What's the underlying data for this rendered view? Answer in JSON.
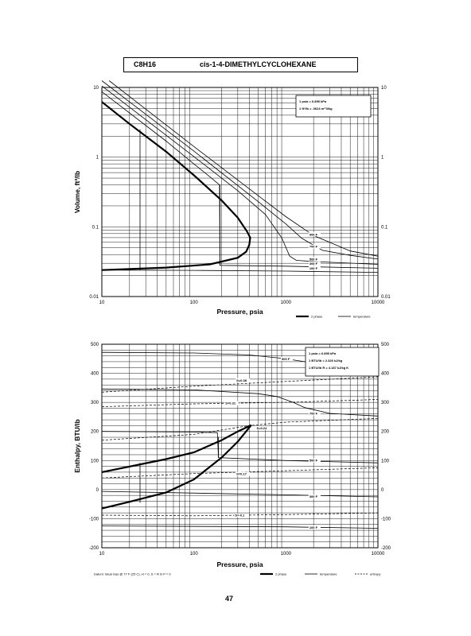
{
  "header": {
    "formula": "C8H16",
    "name": "cis-1-4-DIMETHYLCYCLOHEXANE"
  },
  "page_number": "47",
  "chart_data": [
    {
      "type": "line",
      "id": "volume",
      "xlabel": "Pressure,  psia",
      "ylabel": "Volume,  ft^3/lb",
      "x_scale": "log",
      "y_scale": "log",
      "xlim": [
        10,
        10000
      ],
      "ylim": [
        0.01,
        10
      ],
      "x_ticks": [
        "10",
        "100",
        "1000",
        "10000"
      ],
      "y_ticks": [
        "0.01",
        "0.1",
        "1",
        "10"
      ],
      "conversion_box": [
        "1 psia = 6.895 kPa",
        "1 ft^3/lb = .0624 m^3/kg"
      ],
      "legend": [
        "2 phase",
        "temperature"
      ],
      "series": [
        {
          "style": "2phase",
          "points": [
            [
              10,
              6.2
            ],
            [
              20,
              3.0
            ],
            [
              50,
              1.2
            ],
            [
              100,
              0.55
            ],
            [
              200,
              0.24
            ],
            [
              300,
              0.135
            ],
            [
              380,
              0.085
            ],
            [
              410,
              0.07
            ],
            [
              400,
              0.055
            ],
            [
              370,
              0.044
            ],
            [
              300,
              0.036
            ],
            [
              150,
              0.029
            ],
            [
              50,
              0.026
            ],
            [
              10,
              0.024
            ]
          ]
        },
        {
          "name": "100 F",
          "style": "temp",
          "points": [
            [
              10,
              0.024
            ],
            [
              100,
              0.0237
            ],
            [
              1000,
              0.0232
            ],
            [
              10000,
              0.0222
            ]
          ]
        },
        {
          "name": "300 F",
          "style": "temp",
          "points": [
            [
              10,
              8.7
            ],
            [
              50,
              1.7
            ],
            [
              100,
              0.8
            ],
            [
              150,
              0.52
            ],
            [
              190,
              0.4
            ],
            [
              192,
              0.028
            ],
            [
              1000,
              0.0273
            ],
            [
              10000,
              0.0255
            ]
          ]
        },
        {
          "name": "500 F",
          "style": "temp",
          "points": [
            [
              10,
              10.5
            ],
            [
              100,
              1.02
            ],
            [
              300,
              0.33
            ],
            [
              600,
              0.15
            ],
            [
              900,
              0.07
            ],
            [
              1100,
              0.038
            ],
            [
              1300,
              0.033
            ],
            [
              2000,
              0.0318
            ],
            [
              10000,
              0.029
            ]
          ]
        },
        {
          "name": "700 F",
          "style": "temp",
          "points": [
            [
              10,
              12.5
            ],
            [
              100,
              1.22
            ],
            [
              500,
              0.23
            ],
            [
              1000,
              0.11
            ],
            [
              1500,
              0.068
            ],
            [
              2500,
              0.046
            ],
            [
              5000,
              0.039
            ],
            [
              10000,
              0.0345
            ]
          ]
        },
        {
          "name": "900 F",
          "style": "temp",
          "points": [
            [
              12,
              12.5
            ],
            [
              100,
              1.42
            ],
            [
              500,
              0.28
            ],
            [
              1000,
              0.14
            ],
            [
              2000,
              0.075
            ],
            [
              5000,
              0.045
            ],
            [
              10000,
              0.038
            ]
          ]
        }
      ],
      "labels": [
        {
          "text": "900 F",
          "x": 1800,
          "y": 0.075
        },
        {
          "text": "700 F",
          "x": 1800,
          "y": 0.05
        },
        {
          "text": "500 F",
          "x": 1800,
          "y": 0.033
        },
        {
          "text": "300 F",
          "x": 1800,
          "y": 0.0285
        },
        {
          "text": "100 F",
          "x": 1800,
          "y": 0.0245
        }
      ],
      "vlines": [
        {
          "x": 26,
          "y1": 0.024,
          "y2": 2.5
        },
        {
          "x": 192,
          "y1": 0.028,
          "y2": 0.4
        }
      ]
    },
    {
      "type": "line",
      "id": "enthalpy",
      "xlabel": "Pressure,  psia",
      "ylabel": "Enthalpy,  BTU/lb",
      "x_scale": "log",
      "y_scale": "linear",
      "xlim": [
        10,
        10000
      ],
      "ylim": [
        -200,
        500
      ],
      "x_ticks": [
        "10",
        "100",
        "1000",
        "10000"
      ],
      "y_ticks": [
        "-200",
        "-100",
        "0",
        "100",
        "200",
        "300",
        "400",
        "500"
      ],
      "conversion_box": [
        "1 psia = 6.895 kPa",
        "1 BTU/lb = 2.326 kJ/kg",
        "1 BTU/lb R = 4.187 kJ/kg K"
      ],
      "footnote": "Datum: Ideal Gas @ 77 F (25 C), H = 0, S = R ln P = 0",
      "legend": [
        "2 phase",
        "temperature",
        "entropy"
      ],
      "series": [
        {
          "style": "2phase",
          "points": [
            [
              10,
              60
            ],
            [
              50,
              105
            ],
            [
              100,
              128
            ],
            [
              200,
              170
            ],
            [
              300,
              200
            ],
            [
              420,
              222
            ],
            [
              300,
              165
            ],
            [
              200,
              110
            ],
            [
              100,
              35
            ],
            [
              50,
              -10
            ],
            [
              20,
              -42
            ],
            [
              10,
              -65
            ]
          ]
        },
        {
          "name": "900 F",
          "style": "temp",
          "points": [
            [
              10,
              472
            ],
            [
              100,
              470
            ],
            [
              400,
              463
            ],
            [
              900,
              452
            ],
            [
              1600,
              440
            ],
            [
              3000,
              430
            ],
            [
              10000,
              422
            ]
          ]
        },
        {
          "name": "700 F",
          "style": "temp",
          "points": [
            [
              10,
              346
            ],
            [
              100,
              343
            ],
            [
              500,
              330
            ],
            [
              800,
              320
            ],
            [
              1200,
              300
            ],
            [
              1600,
              282
            ],
            [
              3000,
              262
            ],
            [
              10000,
              253
            ]
          ]
        },
        {
          "name": "500 F",
          "style": "temp",
          "points": [
            [
              10,
              200
            ],
            [
              100,
              198
            ],
            [
              180,
              196
            ],
            [
              185,
              110
            ],
            [
              1000,
              100
            ],
            [
              10000,
              92
            ]
          ]
        },
        {
          "name": "300 F",
          "style": "temp",
          "points": [
            [
              10,
              -6
            ],
            [
              1000,
              -18
            ],
            [
              10000,
              -25
            ]
          ]
        },
        {
          "name": "100 F",
          "style": "temp",
          "points": [
            [
              10,
              -125
            ],
            [
              1000,
              -128
            ],
            [
              10000,
              -133
            ]
          ]
        },
        {
          "name": "S=0.38",
          "style": "entropy",
          "points": [
            [
              10,
              335
            ],
            [
              100,
              356
            ],
            [
              1000,
              372
            ],
            [
              10000,
              388
            ]
          ]
        },
        {
          "name": "S=0.31",
          "style": "entropy",
          "points": [
            [
              10,
              285
            ],
            [
              100,
              295
            ],
            [
              1000,
              300
            ],
            [
              10000,
              310
            ]
          ]
        },
        {
          "name": "S=0.24",
          "style": "entropy",
          "points": [
            [
              10,
              170
            ],
            [
              100,
              190
            ],
            [
              400,
              220
            ],
            [
              1000,
              232
            ],
            [
              10000,
              245
            ]
          ]
        },
        {
          "name": "S=0.17",
          "style": "entropy",
          "points": [
            [
              10,
              40
            ],
            [
              100,
              55
            ],
            [
              1000,
              65
            ],
            [
              10000,
              75
            ]
          ]
        },
        {
          "name": "S=-0.1",
          "style": "entropy",
          "points": [
            [
              10,
              -88
            ],
            [
              100,
              -90
            ],
            [
              1000,
              -86
            ],
            [
              10000,
              -80
            ]
          ]
        }
      ],
      "labels": [
        {
          "text": "900 F",
          "x": 900,
          "y": 445
        },
        {
          "text": "S=0.38",
          "x": 290,
          "y": 372
        },
        {
          "text": "S=0.31",
          "x": 220,
          "y": 293
        },
        {
          "text": "700 F",
          "x": 1800,
          "y": 258
        },
        {
          "text": "S=0.24",
          "x": 480,
          "y": 208
        },
        {
          "text": "500 F",
          "x": 1800,
          "y": 96
        },
        {
          "text": "S=0.17",
          "x": 290,
          "y": 50
        },
        {
          "text": "300 F",
          "x": 1800,
          "y": -28
        },
        {
          "text": "S=-0.1",
          "x": 280,
          "y": -92
        },
        {
          "text": "100 F",
          "x": 1800,
          "y": -135
        }
      ],
      "vlines": [
        {
          "x": 26,
          "y1": -45,
          "y2": 92
        },
        {
          "x": 185,
          "y1": 110,
          "y2": 180
        }
      ]
    }
  ]
}
